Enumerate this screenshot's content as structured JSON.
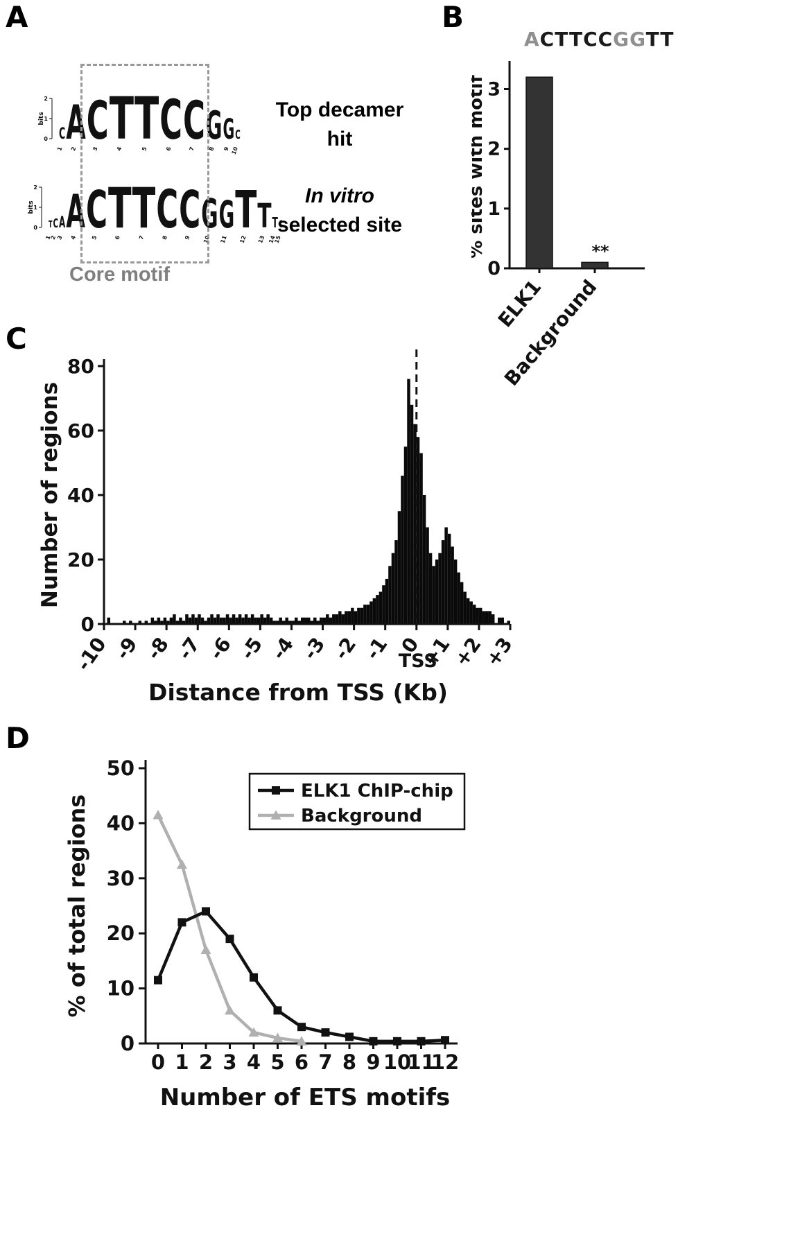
{
  "panel_a": {
    "label": "A",
    "core_motif_label": "Core motif",
    "captions": {
      "top_line1": "Top decamer",
      "top_line2": "hit",
      "bottom_line1": "In vitro",
      "bottom_line2": "selected site"
    },
    "logo_axis": {
      "label": "bits",
      "ticks": [
        "2",
        "1",
        "0"
      ]
    },
    "logo_top": {
      "name": "Top decamer hit",
      "letters": [
        {
          "ch": "C",
          "size": 22,
          "color": "#222222"
        },
        {
          "ch": "A",
          "size": 68,
          "color": "#111111"
        },
        {
          "ch": "C",
          "size": 76,
          "color": "#111111"
        },
        {
          "ch": "T",
          "size": 84,
          "color": "#111111"
        },
        {
          "ch": "T",
          "size": 84,
          "color": "#111111"
        },
        {
          "ch": "C",
          "size": 78,
          "color": "#111111"
        },
        {
          "ch": "C",
          "size": 76,
          "color": "#111111"
        },
        {
          "ch": "G",
          "size": 56,
          "color": "#979797"
        },
        {
          "ch": "G",
          "size": 40,
          "color": "#b3b3b3"
        },
        {
          "ch": "C",
          "size": 18,
          "color": "#222222"
        }
      ],
      "positions": [
        "1",
        "2",
        "3",
        "4",
        "5",
        "6",
        "7",
        "8",
        "9",
        "10"
      ]
    },
    "logo_bottom": {
      "name": "In vitro selected site",
      "letters": [
        {
          "ch": "T",
          "size": 13,
          "color": "#222222"
        },
        {
          "ch": "C",
          "size": 18,
          "color": "#222222"
        },
        {
          "ch": "A",
          "size": 22,
          "color": "#222222"
        },
        {
          "ch": "A",
          "size": 66,
          "color": "#111111"
        },
        {
          "ch": "C",
          "size": 74,
          "color": "#111111"
        },
        {
          "ch": "T",
          "size": 80,
          "color": "#111111"
        },
        {
          "ch": "T",
          "size": 80,
          "color": "#111111"
        },
        {
          "ch": "C",
          "size": 76,
          "color": "#111111"
        },
        {
          "ch": "C",
          "size": 74,
          "color": "#111111"
        },
        {
          "ch": "G",
          "size": 58,
          "color": "#979797"
        },
        {
          "ch": "G",
          "size": 54,
          "color": "#979797"
        },
        {
          "ch": "T",
          "size": 74,
          "color": "#111111"
        },
        {
          "ch": "T",
          "size": 48,
          "color": "#111111"
        },
        {
          "ch": "T",
          "size": 20,
          "color": "#222222"
        },
        {
          "ch": "C",
          "size": 14,
          "color": "#222222"
        }
      ],
      "positions": [
        "1",
        "2",
        "3",
        "4",
        "5",
        "6",
        "7",
        "8",
        "9",
        "10",
        "11",
        "12",
        "13",
        "14",
        "15"
      ]
    }
  },
  "panel_b": {
    "label": "B",
    "title": "ACTTCCGGTT",
    "title_segments": [
      {
        "text": "A",
        "color": "#8f8f8f"
      },
      {
        "text": "CTTCC",
        "color": "#1a1a1a"
      },
      {
        "text": "GG",
        "color": "#8f8f8f"
      },
      {
        "text": "TT",
        "color": "#1a1a1a"
      }
    ]
  },
  "panel_c": {
    "label": "C"
  },
  "panel_d": {
    "label": "D"
  },
  "chart_data": [
    {
      "panel": "B",
      "type": "bar",
      "title": "ACTTCCGGTT",
      "categories": [
        "ELK1",
        "Background"
      ],
      "values": [
        3.2,
        0.1
      ],
      "ylabel": "% sites with motif",
      "ylim": [
        0,
        3.4
      ],
      "yticks": [
        0,
        1,
        2,
        3
      ],
      "bar_color": "#333333",
      "significance": {
        "category": "Background",
        "text": "**"
      }
    },
    {
      "panel": "C",
      "type": "bar",
      "subtype": "histogram",
      "title": "",
      "xlabel": "Distance from TSS (Kb)",
      "ylabel": "Number of regions",
      "ylim": [
        0,
        80
      ],
      "yticks": [
        0,
        20,
        40,
        60,
        80
      ],
      "x_start": -10,
      "x_end": 3,
      "bin_width": 0.1,
      "values": [
        0,
        2,
        0,
        0,
        0,
        0,
        1,
        0,
        1,
        0,
        0,
        1,
        0,
        1,
        0,
        2,
        1,
        2,
        1,
        2,
        1,
        2,
        3,
        1,
        2,
        1,
        3,
        2,
        3,
        2,
        3,
        2,
        1,
        2,
        3,
        2,
        3,
        2,
        2,
        3,
        2,
        3,
        2,
        3,
        2,
        3,
        2,
        3,
        2,
        2,
        3,
        2,
        3,
        2,
        1,
        1,
        2,
        1,
        2,
        1,
        1,
        2,
        1,
        2,
        2,
        2,
        1,
        2,
        1,
        2,
        2,
        3,
        2,
        3,
        3,
        4,
        3,
        4,
        4,
        5,
        4,
        5,
        5,
        6,
        6,
        7,
        8,
        9,
        10,
        12,
        14,
        18,
        22,
        26,
        35,
        46,
        55,
        76,
        68,
        62,
        58,
        53,
        40,
        30,
        22,
        18,
        20,
        22,
        26,
        30,
        28,
        24,
        20,
        16,
        13,
        10,
        8,
        7,
        6,
        5,
        5,
        4,
        4,
        4,
        3,
        0,
        2,
        2,
        0,
        1,
        0
      ],
      "xticks": [
        {
          "v": -10,
          "label": "-10"
        },
        {
          "v": -9,
          "label": "-9"
        },
        {
          "v": -8,
          "label": "-8"
        },
        {
          "v": -7,
          "label": "-7"
        },
        {
          "v": -6,
          "label": "-6"
        },
        {
          "v": -5,
          "label": "-5"
        },
        {
          "v": -4,
          "label": "-4"
        },
        {
          "v": -3,
          "label": "-3"
        },
        {
          "v": -2,
          "label": "-2"
        },
        {
          "v": -1,
          "label": "-1"
        },
        {
          "v": 0,
          "label": "0"
        },
        {
          "v": 1,
          "label": "+1"
        },
        {
          "v": 2,
          "label": "+2"
        },
        {
          "v": 3,
          "label": "+3"
        }
      ],
      "tss_line": {
        "x": 0,
        "label": "TSS",
        "style": "dashed"
      }
    },
    {
      "panel": "D",
      "type": "line",
      "xlabel": "Number of ETS motifs",
      "ylabel": "% of total regions",
      "ylim": [
        0,
        50
      ],
      "yticks": [
        0,
        10,
        20,
        30,
        40,
        50
      ],
      "xticks": [
        0,
        1,
        2,
        3,
        4,
        5,
        6,
        7,
        8,
        9,
        10,
        11,
        12
      ],
      "legend_position": "top-right",
      "series": [
        {
          "name": "ELK1 ChIP-chip",
          "color": "#111111",
          "marker": "square",
          "x": [
            0,
            1,
            2,
            3,
            4,
            5,
            6,
            7,
            8,
            9,
            10,
            11,
            12
          ],
          "values": [
            11.5,
            22,
            24,
            19,
            12,
            6,
            3,
            2,
            1.2,
            0.4,
            0.4,
            0.4,
            0.6
          ]
        },
        {
          "name": "Background",
          "color": "#b0b0b0",
          "marker": "triangle",
          "x": [
            0,
            1,
            2,
            3,
            4,
            5,
            6
          ],
          "values": [
            41.5,
            32.5,
            17,
            6,
            2,
            1,
            0.4
          ]
        }
      ]
    }
  ]
}
